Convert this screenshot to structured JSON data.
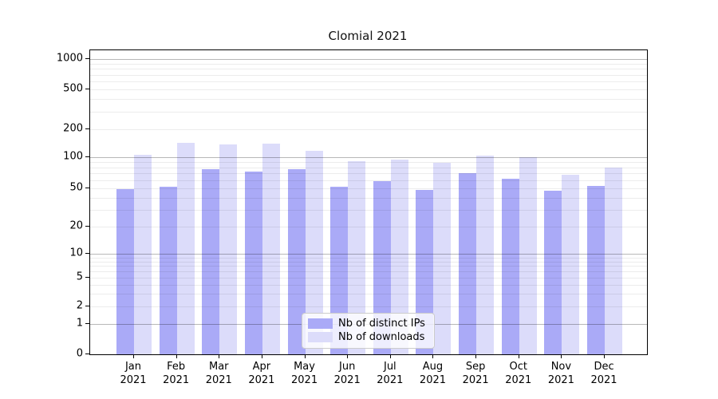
{
  "title": "Clomial 2021",
  "chart_data": {
    "type": "bar",
    "title": "Clomial 2021",
    "categories": [
      "Jan 2021",
      "Feb 2021",
      "Mar 2021",
      "Apr 2021",
      "May 2021",
      "Jun 2021",
      "Jul 2021",
      "Aug 2021",
      "Sep 2021",
      "Oct 2021",
      "Nov 2021",
      "Dec 2021"
    ],
    "months": [
      "Jan",
      "Feb",
      "Mar",
      "Apr",
      "May",
      "Jun",
      "Jul",
      "Aug",
      "Sep",
      "Oct",
      "Nov",
      "Dec"
    ],
    "year_label": "2021",
    "series": [
      {
        "name": "Nb of distinct IPs",
        "color": "#aaaaf7",
        "values": [
          49,
          52,
          76,
          72,
          76,
          52,
          59,
          48,
          70,
          62,
          47,
          53
        ]
      },
      {
        "name": "Nb of downloads",
        "color": "#dcdcfa",
        "values": [
          107,
          144,
          137,
          140,
          117,
          91,
          94,
          88,
          104,
          100,
          68,
          79
        ]
      }
    ],
    "xlabel": "",
    "ylabel": "",
    "y_scale": "symlog",
    "y_ticks": [
      0,
      1,
      2,
      5,
      10,
      20,
      50,
      100,
      200,
      500,
      1000
    ],
    "y_major_grid_values": [
      1,
      10,
      100,
      1000
    ],
    "y_minor_grid_values": [
      2,
      3,
      4,
      5,
      6,
      7,
      8,
      9,
      20,
      30,
      40,
      50,
      60,
      70,
      80,
      90,
      200,
      300,
      400,
      500,
      600,
      700,
      800,
      900
    ],
    "ylim": [
      0,
      1400
    ],
    "grid": "horizontal, drawn above bars",
    "legend_position": "inside lower center"
  },
  "legend": {
    "items": [
      {
        "label": "Nb of distinct IPs",
        "color": "#aaaaf7"
      },
      {
        "label": "Nb of downloads",
        "color": "#dcdcfa"
      }
    ]
  },
  "colors": {
    "bar_distinct_ips": "#aaaaf7",
    "bar_downloads": "#dcdcfa",
    "grid_major": "#b8b8b8",
    "grid_minor": "#ededed",
    "axis": "#000000",
    "background": "#ffffff",
    "legend_border": "#cccccc"
  }
}
